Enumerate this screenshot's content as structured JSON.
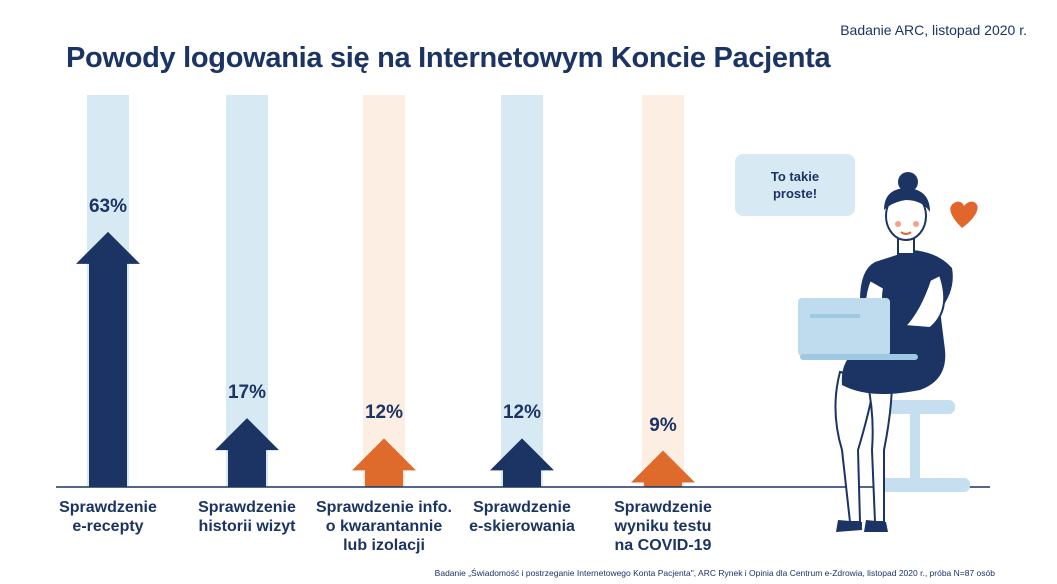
{
  "source_top": "Badanie ARC, listopad 2020 r.",
  "title": "Powody logowania się na Internetowym Koncie Pacjenta",
  "bubble_text": "To takie proste!",
  "footnote": "Badanie „Świadomość i postrzeganie Internetowego Konta Pacjenta\", ARC Rynek i Opinia dla Centrum e-Zdrowia, listopad 2020 r., próba N=87 osób",
  "colors": {
    "navy": "#1b3463",
    "orange": "#de6a2c",
    "light_blue": "#d7eaf4",
    "light_peach": "#fdeee3",
    "heart": "#e0662c"
  },
  "chart_data": {
    "type": "bar",
    "categories": [
      "Sprawdzenie e-recepty",
      "Sprawdzenie historii wizyt",
      "Sprawdzenie info. o kwarantannie lub izolacji",
      "Sprawdzenie e-skierowania",
      "Sprawdzenie wyniku testu na COVID-19"
    ],
    "category_lines": [
      [
        "Sprawdzenie",
        "e-recepty"
      ],
      [
        "Sprawdzenie",
        "historii wizyt"
      ],
      [
        "Sprawdzenie info.",
        "o kwarantannie",
        "lub izolacji"
      ],
      [
        "Sprawdzenie",
        "e-skierowania"
      ],
      [
        "Sprawdzenie",
        "wyniku testu",
        "na COVID-19"
      ]
    ],
    "values": [
      63,
      17,
      12,
      12,
      9
    ],
    "value_labels": [
      "63%",
      "17%",
      "12%",
      "12%",
      "9%"
    ],
    "bar_colors": [
      "#1b3463",
      "#1b3463",
      "#de6a2c",
      "#1b3463",
      "#de6a2c"
    ],
    "track_colors": [
      "#d7eaf4",
      "#d7eaf4",
      "#fdeee3",
      "#d7eaf4",
      "#fdeee3"
    ],
    "title": "Powody logowania się na Internetowym Koncie Pacjenta",
    "xlabel": "",
    "ylabel": "",
    "ylim": [
      0,
      100
    ],
    "grid": false,
    "legend": "none"
  }
}
